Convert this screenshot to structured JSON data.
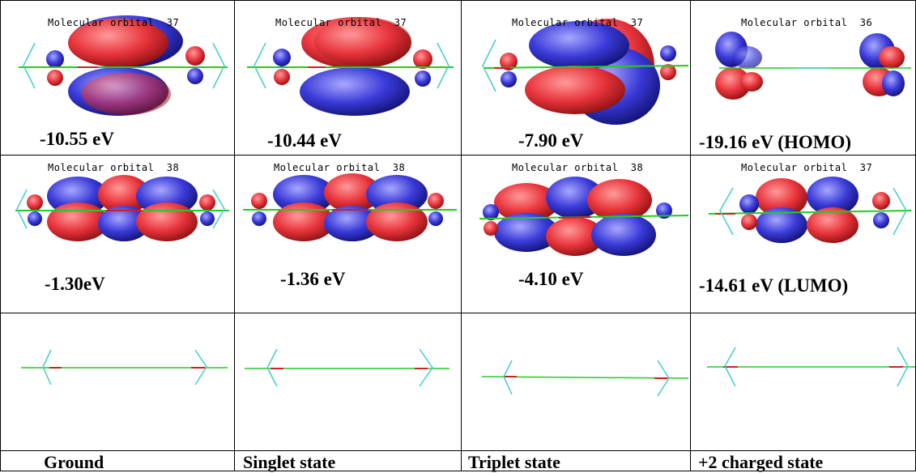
{
  "rows": [
    {
      "cells": [
        {
          "label": "Molecular orbital  37",
          "energy": "-10.55 eV"
        },
        {
          "label": "Molecular orbital  37",
          "energy": "-10.44 eV"
        },
        {
          "label": "Molecular orbital  37",
          "energy": "-7.90 eV"
        },
        {
          "label": "Molecular orbital  36",
          "energy": "-19.16 eV (HOMO)"
        }
      ]
    },
    {
      "cells": [
        {
          "label": "Molecular orbital  38",
          "energy": "-1.30eV"
        },
        {
          "label": "Molecular orbital  38",
          "energy": "-1.36 eV"
        },
        {
          "label": "Molecular orbital  38",
          "energy": "-4.10 eV"
        },
        {
          "label": "Molecular orbital  37",
          "energy": "-14.61 eV (LUMO)"
        }
      ]
    }
  ],
  "states": [
    "Ground",
    "Singlet state",
    "Triplet state",
    "+2 charged state"
  ],
  "colors": {
    "lobe_positive": "#e8343c",
    "lobe_negative": "#3a3ad8",
    "bond_green": "#22cc22",
    "bond_red": "#cc2222",
    "bond_cyan": "#44cccc"
  }
}
